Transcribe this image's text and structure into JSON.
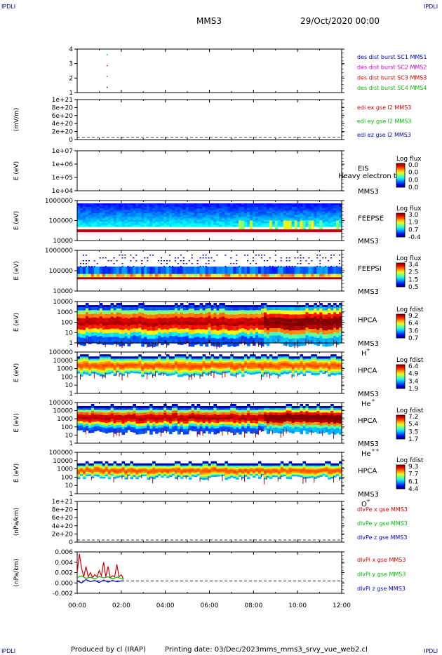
{
  "page": {
    "corner_label": "IPDLI",
    "mission": "MMS3",
    "datetime": "29/Oct/2020 00:00",
    "footer": {
      "produced_by": "Produced by cl (IRAP)",
      "printing_date": "Printing date: 03/Dec/2023",
      "script_name": "mms_mms3_srvy_vue_web2.cl"
    }
  },
  "chart_data": {
    "type": "heatmap",
    "x_axis": {
      "ticks": [
        "00:00",
        "02:00",
        "04:00",
        "06:00",
        "08:00",
        "10:00",
        "12:00"
      ],
      "range_hours": [
        0,
        12
      ]
    },
    "panels": [
      {
        "kind": "availability",
        "yticks": [
          "4",
          "3",
          "2",
          "1"
        ],
        "ylim": [
          0.5,
          4.5
        ],
        "legend": [
          {
            "text": "des dist burst SC1 MMS1",
            "color": "#0000cc"
          },
          {
            "text": "des dist burst SC2 MMS2",
            "color": "#cc00cc"
          },
          {
            "text": "des dist burst SC3 MMS3",
            "color": "#cc0000"
          },
          {
            "text": "des dist burst SC4 MMS4",
            "color": "#00bb00"
          }
        ],
        "points": [
          {
            "t": 1.35,
            "y": 4,
            "color": "#00bb00"
          },
          {
            "t": 1.35,
            "y": 3,
            "color": "#cc0000"
          },
          {
            "t": 1.35,
            "y": 2,
            "color": "#cc00cc"
          },
          {
            "t": 1.35,
            "y": 1,
            "color": "#000000"
          }
        ]
      },
      {
        "kind": "line",
        "ylabel": "(mV/m)",
        "yticks": [
          "1e+21",
          "8e+20",
          "6e+20",
          "4e+20",
          "2e+20",
          "0"
        ],
        "legend": [
          {
            "text": "edi ex gse l2 MMS3",
            "color": "#cc0000"
          },
          {
            "text": "edi ey gse l2 MMS3",
            "color": "#00bb00"
          },
          {
            "text": "edi ez gse l2 MMS3",
            "color": "#0000cc"
          }
        ]
      },
      {
        "kind": "spectrogram",
        "ylabel": "E (eV)",
        "yticks": [
          "1e+07",
          "1e+06",
          "1e+05",
          "1e+04"
        ],
        "instrument": "EIS",
        "instrument2": "MMS3",
        "overlay": "Heavy electron to",
        "cbar_title": "Log flux",
        "cbar_ticks": [
          "0.0",
          "0.0",
          "0.0",
          "0.0"
        ],
        "empty": true
      },
      {
        "kind": "spectrogram",
        "ylabel": "E (eV)",
        "yticks": [
          "1000000",
          "100000",
          "10000"
        ],
        "instrument": "FEEPSE",
        "instrument2": "MMS3",
        "cbar_title": "Log flux",
        "cbar_ticks": [
          "3.0",
          "1.9",
          "0.7",
          "-0.4"
        ],
        "cbar_range": [
          -0.4,
          3.0
        ],
        "data": {
          "style": "electron",
          "cover": [
            0,
            12
          ],
          "band_top": 0.0,
          "band_bottom": 0.58,
          "red_line": 0.8
        }
      },
      {
        "kind": "spectrogram",
        "ylabel": "E (eV)",
        "yticks": [
          "1000000",
          "100000",
          "10000"
        ],
        "instrument": "FEEPSI",
        "instrument2": "MMS3",
        "cbar_title": "Log flux",
        "cbar_ticks": [
          "3.4",
          "2.5",
          "1.5",
          "0.5"
        ],
        "cbar_range": [
          0.5,
          3.4
        ],
        "data": {
          "style": "ion",
          "cover": [
            0,
            12
          ],
          "red_line": 0.68
        }
      },
      {
        "kind": "spectrogram",
        "ylabel": "E (eV)",
        "yticks": [
          "10000",
          "1000",
          "100",
          "10",
          "1"
        ],
        "instrument": "HPCA",
        "instrument2": "MMS3",
        "species": "H",
        "species_sup": "+",
        "cbar_title": "Log fdist",
        "cbar_ticks": [
          "9.2",
          "6.4",
          "3.6",
          "0.7"
        ],
        "cbar_range": [
          0.7,
          9.2
        ],
        "data": {
          "style": "hpca",
          "cover": [
            0,
            12
          ],
          "top": 0.12,
          "peak": 0.5,
          "bottom": 0.9
        }
      },
      {
        "kind": "spectrogram",
        "ylabel": "E (eV)",
        "yticks": [
          "100000",
          "10000",
          "1000",
          "100",
          "10",
          "1"
        ],
        "instrument": "HPCA",
        "instrument2": "MMS3",
        "species": "He",
        "species_sup": "+",
        "cbar_title": "Log fdist",
        "cbar_ticks": [
          "6.4",
          "4.9",
          "3.4",
          "1.9"
        ],
        "cbar_range": [
          1.9,
          6.4
        ],
        "data": {
          "style": "thin",
          "cover": [
            0,
            12
          ],
          "top": 0.14,
          "peak": 0.28,
          "bottom": 0.45
        }
      },
      {
        "kind": "spectrogram",
        "ylabel": "E (eV)",
        "yticks": [
          "100000",
          "10000",
          "1000",
          "100",
          "10",
          "1"
        ],
        "instrument": "HPCA",
        "instrument2": "MMS3",
        "species": "He",
        "species_sup": "++",
        "cbar_title": "Log fdist",
        "cbar_ticks": [
          "7.2",
          "5.4",
          "3.5",
          "1.7"
        ],
        "cbar_range": [
          1.7,
          7.2
        ],
        "data": {
          "style": "hpca",
          "cover": [
            0,
            12
          ],
          "top": 0.12,
          "peak": 0.4,
          "bottom": 0.62
        }
      },
      {
        "kind": "spectrogram",
        "ylabel": "E (eV)",
        "yticks": [
          "100000",
          "10000",
          "1000",
          "100",
          "10",
          "1"
        ],
        "instrument": "HPCA",
        "instrument2": "MMS3",
        "species": "O",
        "species_sup": "+",
        "cbar_title": "Log fdist",
        "cbar_ticks": [
          "9.3",
          "7.7",
          "6.1",
          "4.4"
        ],
        "cbar_range": [
          4.4,
          9.3
        ],
        "data": {
          "style": "thin",
          "cover": [
            0,
            12
          ],
          "top": 0.3,
          "peak": 0.45,
          "bottom": 0.52
        }
      },
      {
        "kind": "line",
        "ylabel": "(nPa/km)",
        "yticks": [
          "1e+21",
          "8e+20",
          "6e+20",
          "4e+20",
          "2e+20",
          "0"
        ],
        "legend": [
          {
            "text": "dlvPe x gse MMS3",
            "color": "#cc0000"
          },
          {
            "text": "dlvPe y gse MMS3",
            "color": "#00bb00"
          },
          {
            "text": "dlvPe z gse MMS3",
            "color": "#0000cc"
          }
        ]
      },
      {
        "kind": "line",
        "ylabel": "(nPa/km)",
        "yticks": [
          "0.006",
          "0.004",
          "0.002",
          "0.000",
          "-0.002"
        ],
        "ylim": [
          -0.003,
          0.007
        ],
        "legend": [
          {
            "text": "dlvPi x gse MMS3",
            "color": "#cc0000"
          },
          {
            "text": "dlvPi y gse MMS3",
            "color": "#00bb00"
          },
          {
            "text": "dlvPi z gse MMS3",
            "color": "#0000cc"
          }
        ],
        "series": [
          {
            "name": "dlvPi x gse MMS3",
            "color": "#cc0000",
            "t": [
              0.0,
              0.1,
              0.2,
              0.3,
              0.4,
              0.5,
              0.6,
              0.7,
              0.8,
              0.9,
              1.0,
              1.1,
              1.2,
              1.3,
              1.4,
              1.5,
              1.6,
              1.7,
              1.8,
              1.9,
              2.0,
              2.1
            ],
            "y": [
              0.002,
              0.0065,
              0.003,
              0.001,
              0.0035,
              0.001,
              0.002,
              0.0008,
              0.0015,
              0.001,
              0.0025,
              0.0012,
              0.0045,
              0.001,
              0.0035,
              0.0008,
              0.0012,
              0.001,
              0.004,
              0.001,
              0.0015,
              0.0005
            ]
          },
          {
            "name": "dlvPi y gse MMS3",
            "color": "#00bb00",
            "t": [
              0.0,
              0.2,
              0.4,
              0.6,
              0.8,
              1.0,
              1.2,
              1.4,
              1.6,
              1.8,
              2.0,
              2.1
            ],
            "y": [
              0.0008,
              0.0012,
              0.0006,
              0.0009,
              0.0004,
              0.0011,
              0.0007,
              0.001,
              0.0005,
              0.0009,
              0.0006,
              0.0003
            ]
          },
          {
            "name": "dlvPi z gse MMS3",
            "color": "#0000cc",
            "t": [
              0.0,
              0.2,
              0.4,
              0.6,
              0.8,
              1.0,
              1.2,
              1.4,
              1.6,
              1.8,
              2.0,
              2.1
            ],
            "y": [
              0.0,
              -0.0005,
              0.0003,
              -0.0002,
              0.0001,
              -0.0004,
              0.0002,
              -0.0003,
              0.0001,
              -0.0002,
              0.0,
              0.0
            ]
          }
        ]
      }
    ]
  }
}
